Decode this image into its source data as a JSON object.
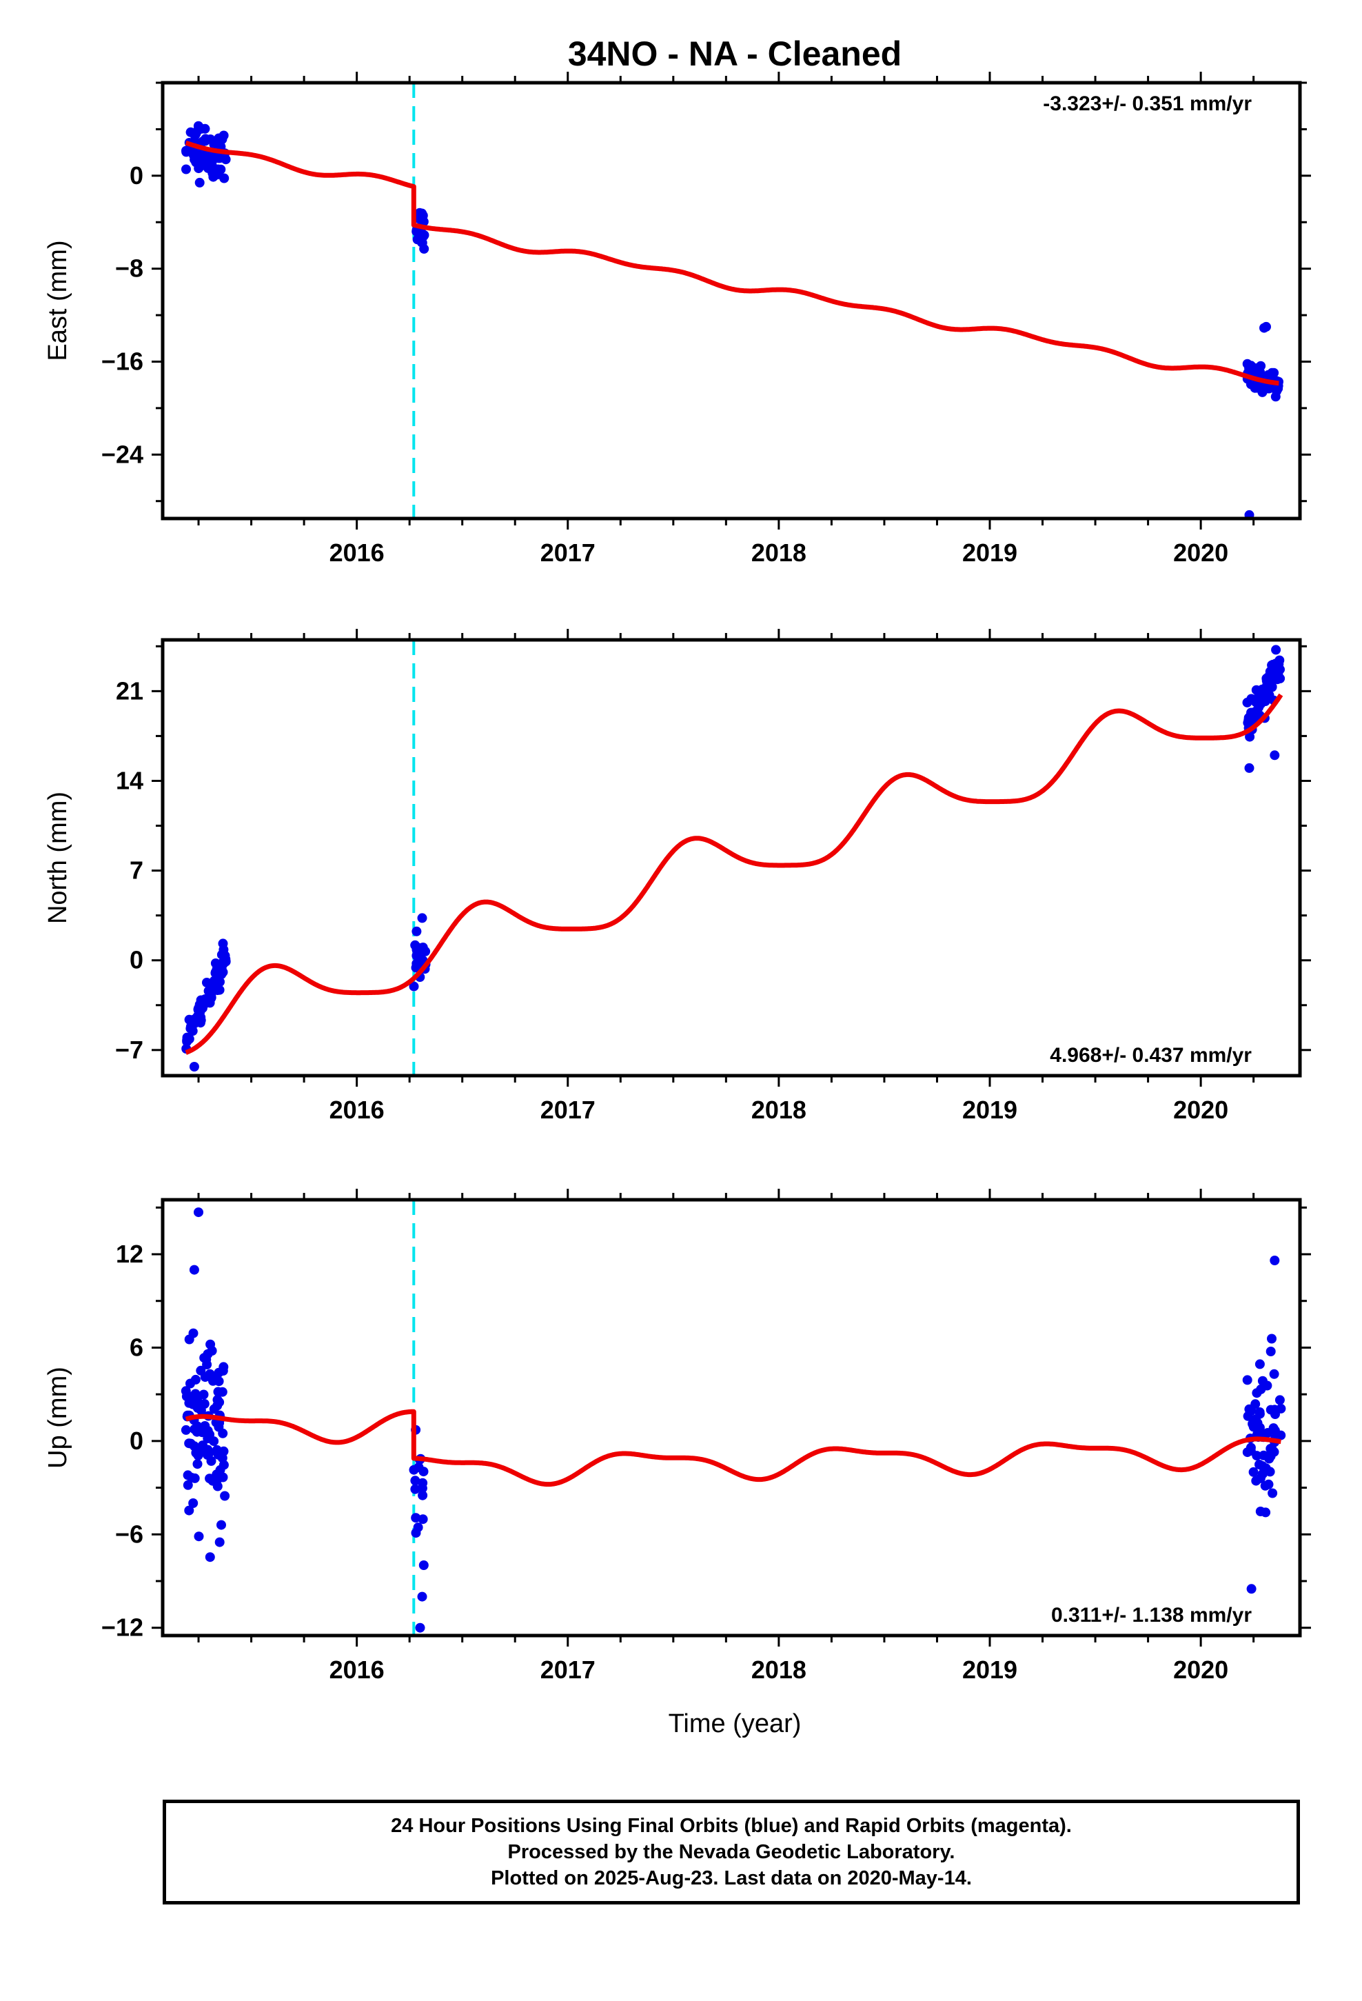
{
  "title": "34NO  - NA - Cleaned",
  "x_axis_label": "Time (year)",
  "footer": {
    "line1": "24 Hour Positions Using Final Orbits (blue) and Rapid Orbits (magenta).",
    "line2": "Processed by the Nevada Geodetic Laboratory.",
    "line3": "Plotted on 2025-Aug-23. Last data on 2020-May-14."
  },
  "colors": {
    "data_points": "#0000ee",
    "model_fit": "#ee0000",
    "equipment_change": "#00e5ee"
  },
  "chart_data": [
    {
      "type": "scatter",
      "panel": "east",
      "ylabel": "East (mm)",
      "rate_text": "-3.323+/- 0.351 mm/yr",
      "xlim": [
        2015.08,
        2020.47
      ],
      "ylim": [
        -29.5,
        8
      ],
      "xticks": [
        2016,
        2017,
        2018,
        2019,
        2020
      ],
      "yticks": [
        0,
        -8,
        -16,
        -24
      ],
      "step_epoch": 2016.27,
      "model": {
        "rate": -3.323,
        "intercept": 2.6,
        "t0": 2015.2,
        "annual_cos": 0.0,
        "annual_sin": 0.25,
        "semi_cos": 0.2,
        "semi_sin": 0.15,
        "step": -3.3
      },
      "clusters": [
        {
          "t_start": 2015.19,
          "t_end": 2015.38,
          "n": 60,
          "center": 2.2,
          "spread": 2.4,
          "trend": -3.3
        },
        {
          "t_start": 2016.27,
          "t_end": 2016.32,
          "n": 22,
          "center": -4.6,
          "spread": 1.5,
          "trend": 0
        },
        {
          "t_start": 2020.22,
          "t_end": 2020.37,
          "n": 70,
          "center": -17.6,
          "spread": 1.1,
          "trend": -3.3
        }
      ],
      "outliers": [
        {
          "x": 2020.3,
          "y": -13.1
        },
        {
          "x": 2020.31,
          "y": -13.0
        },
        {
          "x": 2020.23,
          "y": -29.2
        }
      ]
    },
    {
      "type": "scatter",
      "panel": "north",
      "ylabel": "North (mm)",
      "rate_text": "4.968+/- 0.437 mm/yr",
      "xlim": [
        2015.08,
        2020.47
      ],
      "ylim": [
        -9,
        25
      ],
      "xticks": [
        2016,
        2017,
        2018,
        2019,
        2020
      ],
      "yticks": [
        21,
        14,
        7,
        0,
        -7
      ],
      "step_epoch": 2016.27,
      "model": {
        "rate": 4.968,
        "intercept": -5.1,
        "t0": 2015.2,
        "annual_cos": -1.8,
        "annual_sin": -1.4,
        "semi_cos": 0.4,
        "semi_sin": 0.3,
        "step": 0.0
      },
      "clusters": [
        {
          "t_start": 2015.19,
          "t_end": 2015.38,
          "n": 75,
          "center": -3.0,
          "spread": 1.2,
          "trend": 32
        },
        {
          "t_start": 2016.27,
          "t_end": 2016.33,
          "n": 20,
          "center": 0.4,
          "spread": 1.4,
          "trend": 0
        },
        {
          "t_start": 2020.22,
          "t_end": 2020.38,
          "n": 75,
          "center": 20.6,
          "spread": 1.4,
          "trend": 30
        }
      ],
      "outliers": [
        {
          "x": 2015.23,
          "y": -8.3
        },
        {
          "x": 2020.23,
          "y": 15.0
        },
        {
          "x": 2020.35,
          "y": 16.0
        },
        {
          "x": 2016.31,
          "y": 3.3
        }
      ]
    },
    {
      "type": "scatter",
      "panel": "up",
      "ylabel": "Up (mm)",
      "rate_text": "0.311+/- 1.138 mm/yr",
      "xlim": [
        2015.08,
        2020.47
      ],
      "ylim": [
        -12.5,
        15.5
      ],
      "xticks": [
        2016,
        2017,
        2018,
        2019,
        2020
      ],
      "yticks": [
        12,
        6,
        0,
        -6,
        -12
      ],
      "step_epoch": 2016.27,
      "model": {
        "rate": 0.311,
        "intercept": 0.8,
        "t0": 2015.2,
        "annual_cos": -0.6,
        "annual_sin": 0.55,
        "semi_cos": -0.2,
        "semi_sin": 0.25,
        "step": -3.0
      },
      "clusters": [
        {
          "t_start": 2015.19,
          "t_end": 2015.38,
          "n": 95,
          "center": 0.5,
          "spread": 5.5,
          "trend": 0
        },
        {
          "t_start": 2016.27,
          "t_end": 2016.32,
          "n": 16,
          "center": -3.5,
          "spread": 3.5,
          "trend": 0
        },
        {
          "t_start": 2020.22,
          "t_end": 2020.38,
          "n": 65,
          "center": 0.5,
          "spread": 5.5,
          "trend": 0
        }
      ],
      "outliers": [
        {
          "x": 2015.25,
          "y": 14.7
        },
        {
          "x": 2015.23,
          "y": 11.0
        },
        {
          "x": 2016.31,
          "y": -10.0
        },
        {
          "x": 2016.3,
          "y": -12.0
        },
        {
          "x": 2020.35,
          "y": 11.6
        },
        {
          "x": 2020.24,
          "y": -9.5
        },
        {
          "x": 2015.35,
          "y": -6.5
        }
      ]
    }
  ]
}
